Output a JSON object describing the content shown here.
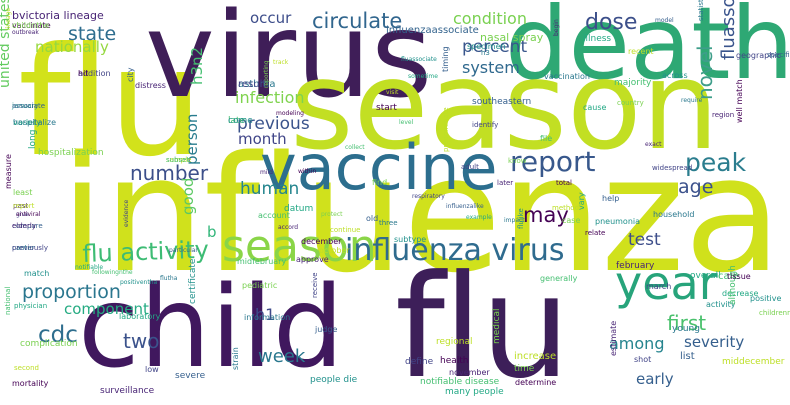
{
  "wordcloud": {
    "big": {
      "flu_top": "flu",
      "virus": "virus",
      "death": "death",
      "season_top": "season",
      "influenza_big": "influenza",
      "vaccine": "vaccine",
      "child": "child",
      "flu_bottom": "flu"
    },
    "medium": {
      "year": "year",
      "season_mid": "season",
      "influenza_virus": "influenza virus",
      "flu_activity": "flu activity",
      "report": "report",
      "peak": "peak",
      "circulate": "circulate",
      "dose": "dose",
      "state": "state",
      "condition": "condition",
      "percent": "percent",
      "system": "system",
      "nationally": "nationally",
      "occur": "occur",
      "bvictoria_lineage": "bvictoria lineage",
      "infection": "infection",
      "previous": "previous",
      "month": "month",
      "number": "number",
      "person": "person",
      "human": "human",
      "good": "good",
      "b": "b",
      "h3n2": "h3n2",
      "united_states": "united states",
      "novel": "novel",
      "fluassociate_death": "fluassociate death",
      "may": "may",
      "test": "test",
      "first": "first",
      "severity": "severity",
      "among": "among",
      "early": "early",
      "age": "age",
      "proportion": "proportion",
      "component": "component",
      "cdc": "cdc",
      "two": "two",
      "h1": "h1",
      "week": "week",
      "influenzaassociate": "influenzaassociate",
      "nasal_spray": "nasal spray"
    },
    "small": [
      "vaccinate",
      "outbreak",
      "addition",
      "city",
      "asthma",
      "january",
      "variety",
      "late",
      "hospitalization",
      "sample",
      "measure",
      "past",
      "give",
      "compare",
      "canter",
      "match",
      "physician",
      "national",
      "complication",
      "second",
      "mortality",
      "surveillance",
      "low",
      "severe",
      "strain",
      "people die",
      "many people",
      "notifiable disease",
      "time",
      "increase",
      "determine",
      "estimate",
      "shot",
      "list",
      "young",
      "activity",
      "overall",
      "care",
      "medical",
      "regional",
      "health",
      "november",
      "define",
      "judge",
      "information",
      "certificate",
      "laboratory",
      "midfebruary",
      "pediatric",
      "october",
      "december",
      "approve",
      "receive",
      "old",
      "three",
      "subtype",
      "datum",
      "account",
      "find",
      "predominate",
      "relate",
      "february",
      "march",
      "help",
      "household",
      "pneumonia",
      "vary",
      "generally",
      "case",
      "method",
      "total",
      "later",
      "adult",
      "timing",
      "vaccination",
      "specimen",
      "illness",
      "majority",
      "country",
      "recent",
      "well match",
      "region",
      "geographic",
      "specifically",
      "require",
      "positive",
      "decrease",
      "although",
      "childrenna",
      "middecember",
      "tissue",
      "exact",
      "widespread",
      "model",
      "statistic",
      "across",
      "cause",
      "file",
      "know",
      "visit",
      "start",
      "begin",
      "identify",
      "southeastern",
      "h3",
      "fluassociate",
      "sometime",
      "level",
      "reporting",
      "track",
      "modeling",
      "accord",
      "respiratory",
      "influenzalike",
      "impact",
      "flulike",
      "example",
      "collect",
      "protect",
      "continue",
      "within",
      "mild",
      "evidence",
      "particular",
      "flutha",
      "positiventha",
      "notifiable",
      "followingnthe",
      "childnthe",
      "lineage",
      "hit",
      "distress",
      "result",
      "associate",
      "hospitalize",
      "come",
      "long",
      "subset",
      "least",
      "report",
      "antiviral",
      "elderly",
      "previously"
    ]
  }
}
